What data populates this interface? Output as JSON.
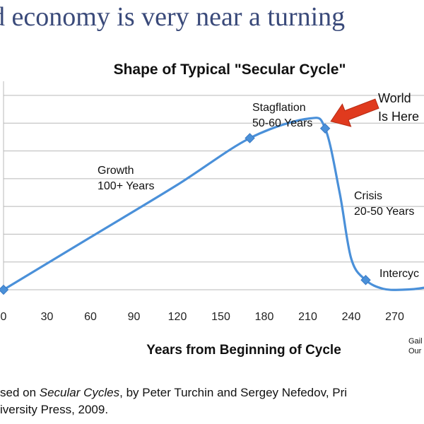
{
  "slide": {
    "title": "d economy is very near a turning"
  },
  "chart_data": {
    "type": "line",
    "title": "Shape of Typical \"Secular Cycle\"",
    "xlabel": "Years from Beginning of Cycle",
    "ylabel": "",
    "xlim": [
      0,
      300
    ],
    "ylim": [
      0,
      10
    ],
    "xticks": [
      0,
      30,
      60,
      90,
      120,
      150,
      180,
      210,
      240,
      270
    ],
    "tick_labels": [
      "0",
      "30",
      "60",
      "90",
      "120",
      "150",
      "180",
      "210",
      "240",
      "270"
    ],
    "grid": "horizontal",
    "series": [
      {
        "name": "",
        "color": "#4a90d9",
        "x": [
          0,
          60,
          120,
          170,
          210,
          222,
          232,
          240,
          250,
          262,
          275,
          290,
          300
        ],
        "y": [
          0,
          2.7,
          5.4,
          7.8,
          8.8,
          8.3,
          5.0,
          1.6,
          0.5,
          0.05,
          0.0,
          0.1,
          0.35
        ]
      }
    ],
    "markers": [
      {
        "x": 0,
        "y": 0
      },
      {
        "x": 170,
        "y": 7.8
      },
      {
        "x": 222,
        "y": 8.3
      },
      {
        "x": 250,
        "y": 0.5
      }
    ],
    "annotations": {
      "growth": [
        "Growth",
        "100+ Years"
      ],
      "stagflation": [
        "Stagflation",
        "50-60 Years"
      ],
      "world": [
        "World",
        "Is Here"
      ],
      "crisis": [
        "Crisis",
        "20-50 Years"
      ],
      "intercycle": "Intercyc",
      "credit": [
        "Gail",
        "Our"
      ]
    },
    "arrow_color": "#e03a1e"
  },
  "source": {
    "line1_prefix": "sed on ",
    "line1_italic": "Secular Cycles",
    "line1_suffix": ", by Peter Turchin and Sergey Nefedov, Pri",
    "line2": "iversity Press, 2009."
  }
}
